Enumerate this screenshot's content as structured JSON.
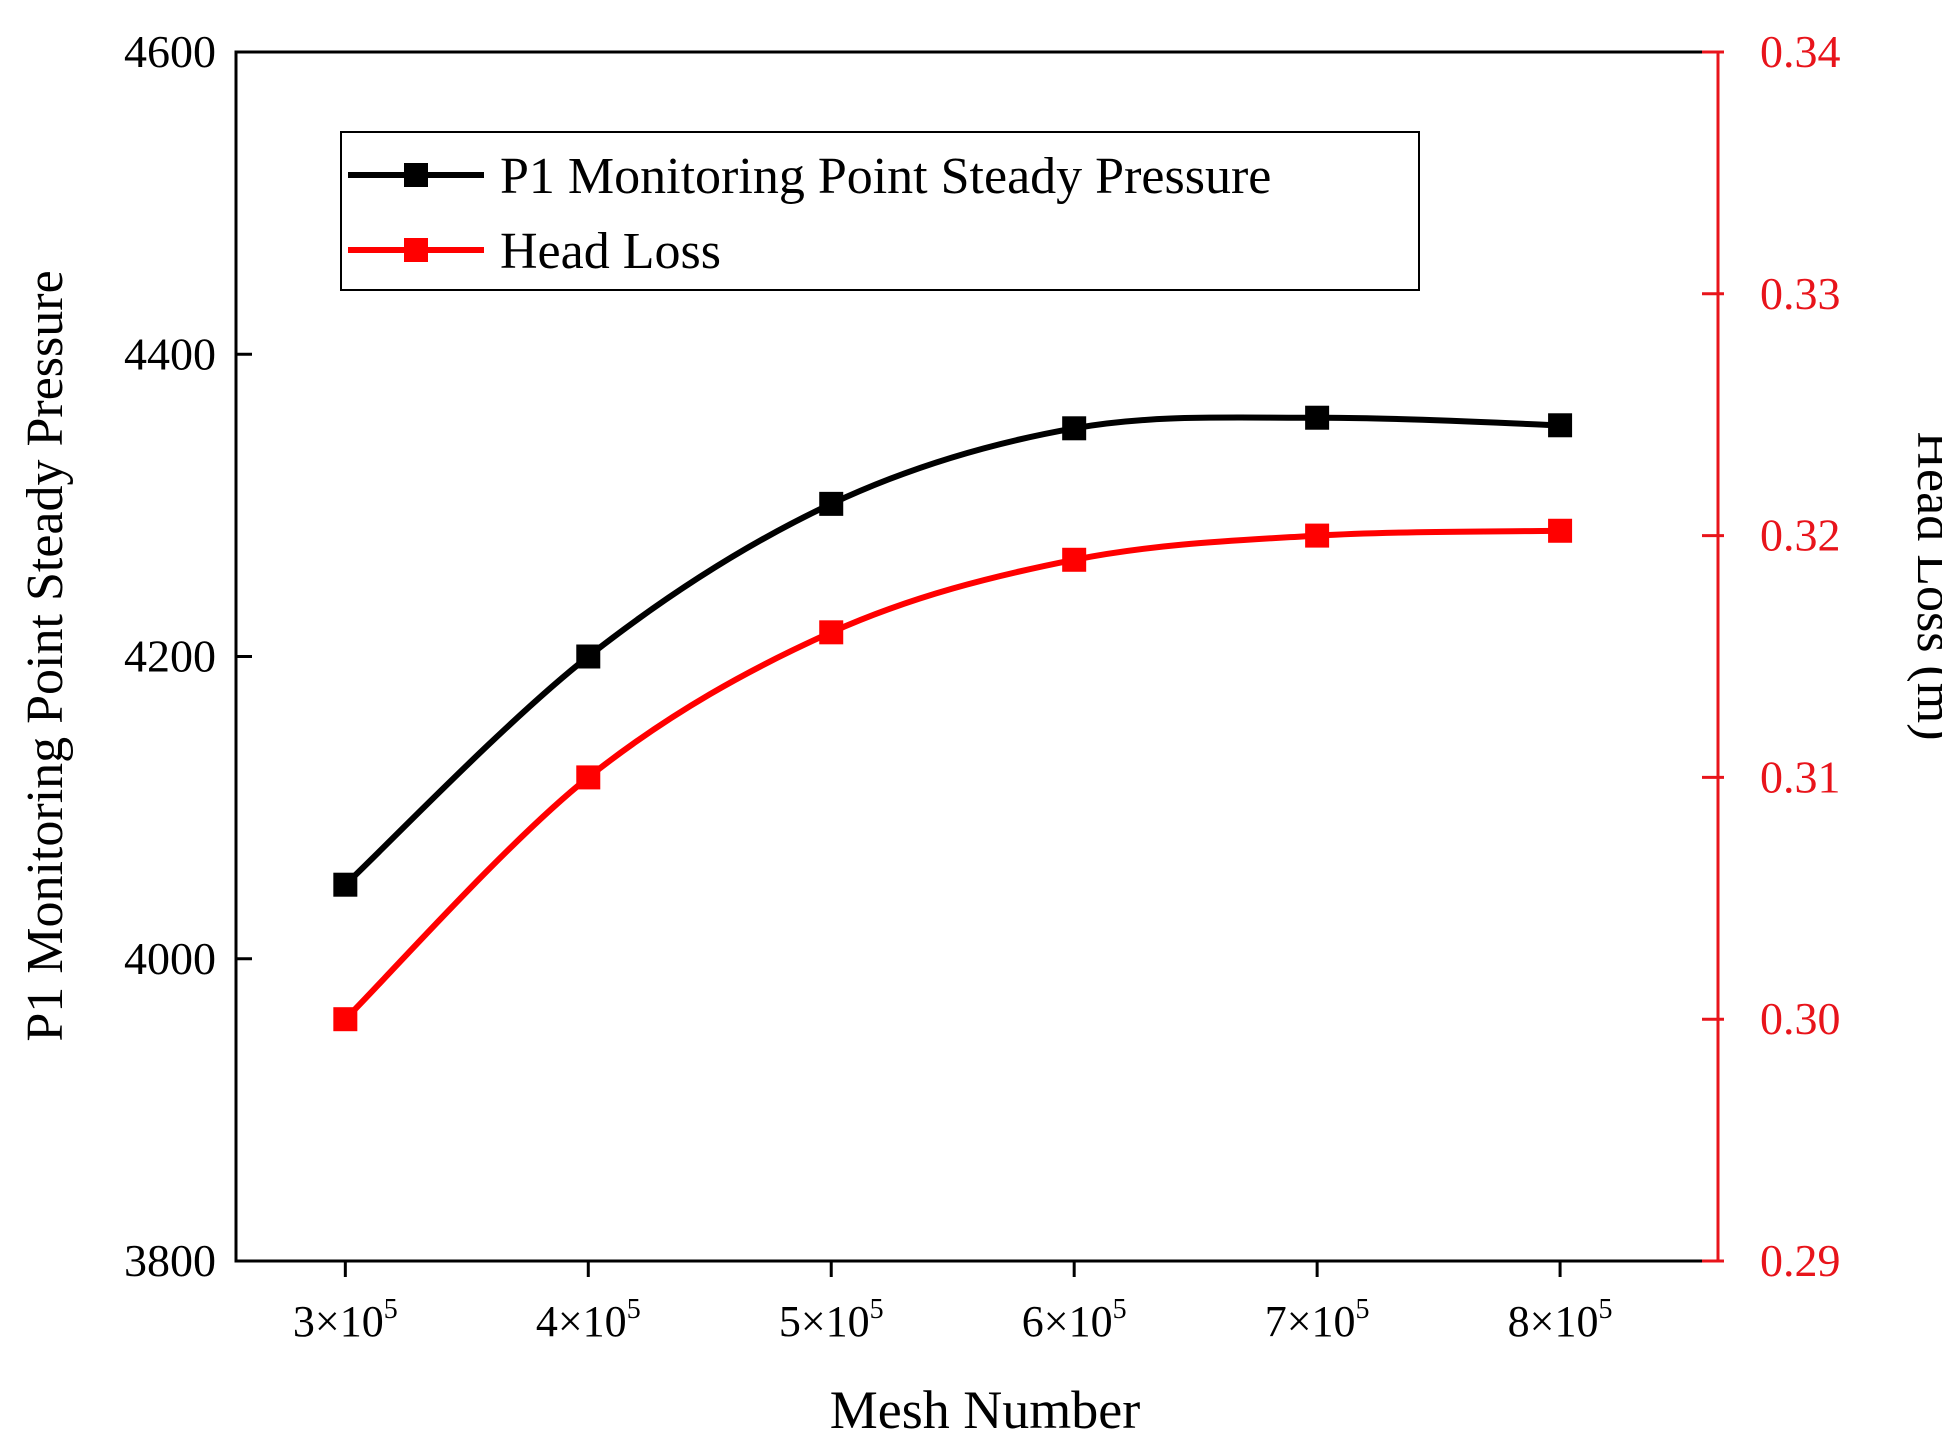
{
  "chart_data": {
    "type": "line",
    "x": [
      3,
      4,
      5,
      6,
      7,
      8
    ],
    "x_tick_labels": [
      {
        "base": "3×10",
        "exp": "5"
      },
      {
        "base": "4×10",
        "exp": "5"
      },
      {
        "base": "5×10",
        "exp": "5"
      },
      {
        "base": "6×10",
        "exp": "5"
      },
      {
        "base": "7×10",
        "exp": "5"
      },
      {
        "base": "8×10",
        "exp": "5"
      }
    ],
    "xlabel": "Mesh Number",
    "xlim": [
      2.55,
      8.65
    ],
    "y_left": {
      "label": "P1 Monitoring Point Steady Pressure",
      "ylim": [
        3800,
        4600
      ],
      "ticks": [
        3800,
        4000,
        4200,
        4400,
        4600
      ],
      "tick_labels": [
        "3800",
        "4000",
        "4200",
        "4400",
        "4600"
      ]
    },
    "y_right": {
      "label": "Head Loss (m)",
      "ylim": [
        0.29,
        0.34
      ],
      "ticks": [
        0.29,
        0.3,
        0.31,
        0.32,
        0.33,
        0.34
      ],
      "tick_labels": [
        "0.29",
        "0.30",
        "0.31",
        "0.32",
        "0.33",
        "0.34"
      ]
    },
    "series": [
      {
        "name": "P1 Monitoring Point Steady Pressure",
        "axis": "left",
        "color": "#000000",
        "values": [
          4049,
          4200,
          4301,
          4351,
          4358,
          4353
        ]
      },
      {
        "name": "Head Loss",
        "axis": "right",
        "color": "#ff0000",
        "values": [
          0.3,
          0.31,
          0.316,
          0.319,
          0.32,
          0.3202
        ]
      }
    ],
    "legend_position": "top-left",
    "colors": {
      "axis_right": "#e8141b",
      "axis_left": "#000000"
    }
  }
}
